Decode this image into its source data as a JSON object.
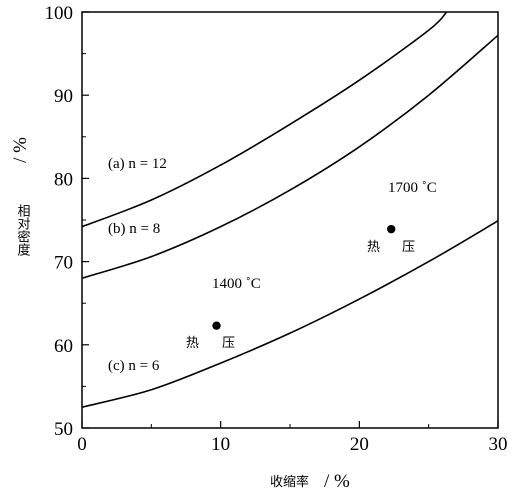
{
  "chart_data": {
    "type": "line",
    "xlabel": "收缩率",
    "xunit": "/ %",
    "ylabel": "相对密度",
    "yunit": "/ %",
    "xlim": [
      0,
      30
    ],
    "ylim": [
      50,
      100
    ],
    "xticks": [
      0,
      10,
      20,
      30
    ],
    "yticks": [
      50,
      60,
      70,
      80,
      90,
      100
    ],
    "series": [
      {
        "name": "(a) n = 12",
        "x": [
          0,
          5,
          10,
          15,
          20,
          25,
          26.3
        ],
        "y": [
          74.2,
          77.4,
          81.6,
          86.5,
          91.8,
          97.8,
          100
        ]
      },
      {
        "name": "(b) n = 8",
        "x": [
          0,
          5,
          10,
          15,
          20,
          25,
          30
        ],
        "y": [
          68.0,
          70.6,
          74.2,
          78.6,
          83.8,
          90.0,
          97.2
        ]
      },
      {
        "name": "(c) n = 6",
        "x": [
          0,
          5,
          10,
          15,
          20,
          25,
          30
        ],
        "y": [
          52.5,
          54.6,
          57.8,
          61.4,
          65.5,
          70.0,
          74.9
        ]
      }
    ],
    "points": [
      {
        "x": 9.7,
        "y": 62.3,
        "temp": "1400 ˚C",
        "method": [
          "热",
          "压"
        ]
      },
      {
        "x": 22.3,
        "y": 73.9,
        "temp": "1700 ˚C",
        "method": [
          "热",
          "压"
        ]
      }
    ],
    "grid": false
  }
}
